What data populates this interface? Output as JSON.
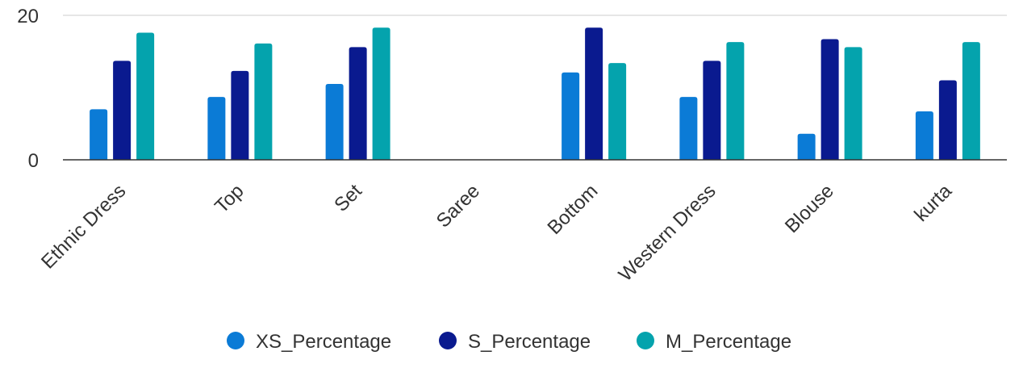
{
  "chart_data": {
    "type": "bar",
    "categories": [
      "Ethnic Dress",
      "Top",
      "Set",
      "Saree",
      "Bottom",
      "Western Dress",
      "Blouse",
      "kurta"
    ],
    "series": [
      {
        "name": "XS_Percentage",
        "color": "#0b7bd6",
        "values": [
          7.0,
          8.7,
          10.5,
          null,
          12.1,
          8.7,
          3.6,
          6.7
        ]
      },
      {
        "name": "S_Percentage",
        "color": "#0a1a8f",
        "values": [
          13.7,
          12.3,
          15.6,
          null,
          18.3,
          13.7,
          16.7,
          11.0
        ]
      },
      {
        "name": "M_Percentage",
        "color": "#04a3ad",
        "values": [
          17.6,
          16.1,
          18.3,
          null,
          13.4,
          16.3,
          15.6,
          16.3
        ]
      }
    ],
    "yticks": [
      "0",
      "20"
    ],
    "ylim": [
      0,
      20
    ],
    "legend": "bottom",
    "grid": true
  }
}
